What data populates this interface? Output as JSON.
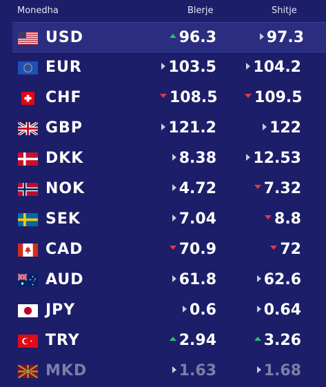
{
  "header": {
    "currency": "Monedha",
    "buy": "Blerje",
    "sell": "Shitje"
  },
  "colors": {
    "background": "#1c1e6a",
    "active_row": "#2b2e80",
    "up": "#27c06a",
    "down": "#e53946",
    "flat": "#c9cbe0"
  },
  "rows": [
    {
      "code": "USD",
      "buy": "96.3",
      "buy_trend": "up",
      "sell": "97.3",
      "sell_trend": "flat",
      "flag_icon": "us-flag-icon"
    },
    {
      "code": "EUR",
      "buy": "103.5",
      "buy_trend": "flat",
      "sell": "104.2",
      "sell_trend": "flat",
      "flag_icon": "eu-flag-icon"
    },
    {
      "code": "CHF",
      "buy": "108.5",
      "buy_trend": "down",
      "sell": "109.5",
      "sell_trend": "down",
      "flag_icon": "ch-flag-icon"
    },
    {
      "code": "GBP",
      "buy": "121.2",
      "buy_trend": "flat",
      "sell": "122",
      "sell_trend": "flat",
      "flag_icon": "gb-flag-icon"
    },
    {
      "code": "DKK",
      "buy": "8.38",
      "buy_trend": "flat",
      "sell": "12.53",
      "sell_trend": "flat",
      "flag_icon": "dk-flag-icon"
    },
    {
      "code": "NOK",
      "buy": "4.72",
      "buy_trend": "flat",
      "sell": "7.32",
      "sell_trend": "down",
      "flag_icon": "no-flag-icon"
    },
    {
      "code": "SEK",
      "buy": "7.04",
      "buy_trend": "flat",
      "sell": "8.8",
      "sell_trend": "down",
      "flag_icon": "se-flag-icon"
    },
    {
      "code": "CAD",
      "buy": "70.9",
      "buy_trend": "down",
      "sell": "72",
      "sell_trend": "down",
      "flag_icon": "ca-flag-icon"
    },
    {
      "code": "AUD",
      "buy": "61.8",
      "buy_trend": "flat",
      "sell": "62.6",
      "sell_trend": "flat",
      "flag_icon": "au-flag-icon"
    },
    {
      "code": "JPY",
      "buy": "0.6",
      "buy_trend": "flat",
      "sell": "0.64",
      "sell_trend": "flat",
      "flag_icon": "jp-flag-icon"
    },
    {
      "code": "TRY",
      "buy": "2.94",
      "buy_trend": "up",
      "sell": "3.26",
      "sell_trend": "up",
      "flag_icon": "tr-flag-icon"
    },
    {
      "code": "MKD",
      "buy": "1.63",
      "buy_trend": "flat",
      "sell": "1.68",
      "sell_trend": "flat",
      "flag_icon": "mk-flag-icon"
    }
  ]
}
